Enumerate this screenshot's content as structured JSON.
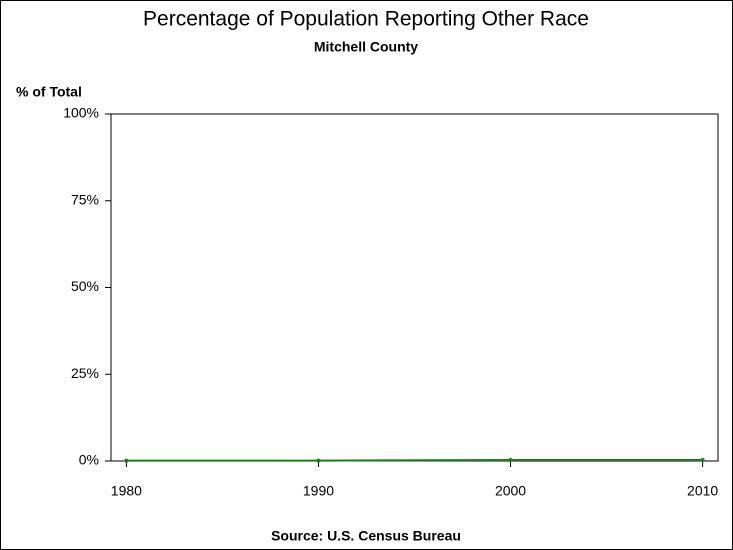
{
  "chart_data": {
    "type": "line",
    "title": "Percentage of Population Reporting Other Race",
    "subtitle": "Mitchell County",
    "y_label": "% of Total",
    "source": "Source: U.S. Census Bureau",
    "x": [
      1980,
      1990,
      2000,
      2010
    ],
    "series": [
      {
        "name": "Other Race",
        "color": "#1e7b1e",
        "values": [
          0.1,
          0.1,
          0.3,
          0.3
        ]
      }
    ],
    "xlim": [
      1979.2,
      2010.8
    ],
    "xticks": [
      1980,
      1990,
      2000,
      2010
    ],
    "ylim": [
      0,
      100
    ],
    "yticks": [
      {
        "value": 0,
        "label": "0%"
      },
      {
        "value": 25,
        "label": "25%"
      },
      {
        "value": 50,
        "label": "50%"
      },
      {
        "value": 75,
        "label": "75%"
      },
      {
        "value": 100,
        "label": "100%"
      }
    ],
    "grid": false
  }
}
